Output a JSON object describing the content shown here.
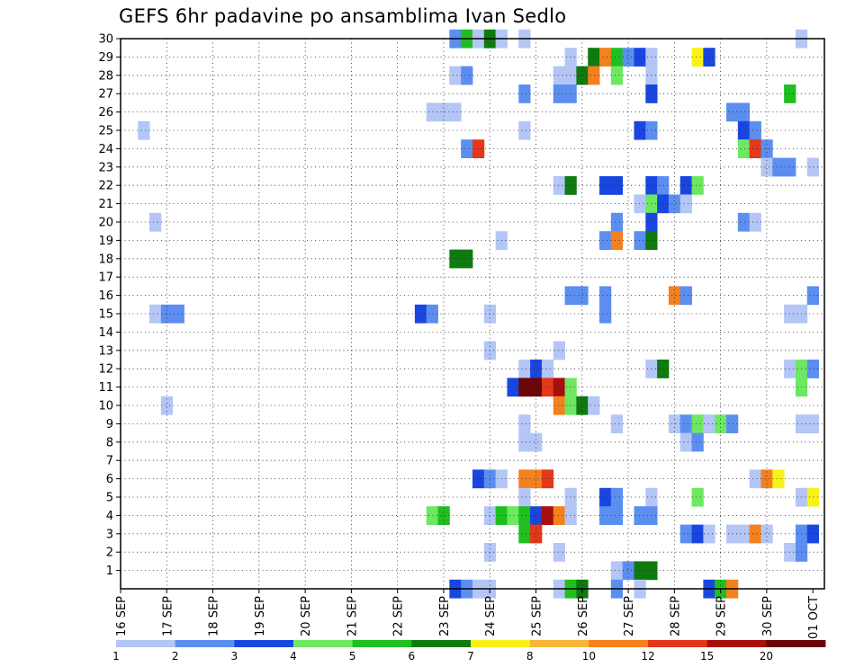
{
  "chart_data": {
    "type": "heatmap",
    "title": "GEFS 6hr padavine po ansamblima Ivan Sedlo",
    "x_axis": {
      "kind": "time",
      "start": "16 SEP 00Z",
      "end": "01 OCT 06Z",
      "step_hours": 6,
      "tick_labels": [
        "16 SEP",
        "17 SEP",
        "18 SEP",
        "19 SEP",
        "20 SEP",
        "21 SEP",
        "22 SEP",
        "23 SEP",
        "24 SEP",
        "25 SEP",
        "26 SEP",
        "27 SEP",
        "28 SEP",
        "29 SEP",
        "30 SEP",
        "01 OCT"
      ]
    },
    "y_axis": {
      "min": 0,
      "max": 30,
      "tick_labels": [
        "1",
        "2",
        "3",
        "4",
        "5",
        "6",
        "7",
        "8",
        "9",
        "10",
        "11",
        "12",
        "13",
        "14",
        "15",
        "16",
        "17",
        "18",
        "19",
        "20",
        "21",
        "22",
        "23",
        "24",
        "25",
        "26",
        "27",
        "28",
        "29",
        "30"
      ]
    },
    "grid": "dotted",
    "legend": {
      "placement": "bottom",
      "labels": [
        "1",
        "2",
        "3",
        "4",
        "5",
        "6",
        "7",
        "8",
        "10",
        "12",
        "15",
        "20"
      ],
      "colors": [
        "#b3c6f5",
        "#5c8ef0",
        "#1a46e0",
        "#6ee862",
        "#1fbf1f",
        "#0f7a0f",
        "#f8f21a",
        "#f7b63a",
        "#f4801e",
        "#e5371a",
        "#a81010",
        "#6a0606"
      ]
    },
    "cells": [
      {
        "x": "23 SEP 06Z",
        "y": 30,
        "v": 2
      },
      {
        "x": "23 SEP 12Z",
        "y": 30,
        "v": 5
      },
      {
        "x": "23 SEP 18Z",
        "y": 30,
        "v": 1
      },
      {
        "x": "24 SEP 00Z",
        "y": 30,
        "v": 6
      },
      {
        "x": "24 SEP 06Z",
        "y": 30,
        "v": 1
      },
      {
        "x": "24 SEP 18Z",
        "y": 30,
        "v": 1
      },
      {
        "x": "30 SEP 18Z",
        "y": 30,
        "v": 1
      },
      {
        "x": "25 SEP 18Z",
        "y": 29,
        "v": 1
      },
      {
        "x": "26 SEP 06Z",
        "y": 29,
        "v": 6
      },
      {
        "x": "26 SEP 12Z",
        "y": 29,
        "v": 10
      },
      {
        "x": "26 SEP 18Z",
        "y": 29,
        "v": 5
      },
      {
        "x": "27 SEP 00Z",
        "y": 29,
        "v": 2
      },
      {
        "x": "27 SEP 06Z",
        "y": 29,
        "v": 3
      },
      {
        "x": "27 SEP 12Z",
        "y": 29,
        "v": 1
      },
      {
        "x": "28 SEP 12Z",
        "y": 29,
        "v": 7
      },
      {
        "x": "28 SEP 18Z",
        "y": 29,
        "v": 3
      },
      {
        "x": "23 SEP 06Z",
        "y": 28,
        "v": 1
      },
      {
        "x": "23 SEP 12Z",
        "y": 28,
        "v": 2
      },
      {
        "x": "25 SEP 12Z",
        "y": 28,
        "v": 1
      },
      {
        "x": "25 SEP 18Z",
        "y": 28,
        "v": 1
      },
      {
        "x": "26 SEP 00Z",
        "y": 28,
        "v": 6
      },
      {
        "x": "26 SEP 06Z",
        "y": 28,
        "v": 10
      },
      {
        "x": "26 SEP 18Z",
        "y": 28,
        "v": 4
      },
      {
        "x": "27 SEP 12Z",
        "y": 28,
        "v": 1
      },
      {
        "x": "24 SEP 18Z",
        "y": 27,
        "v": 2
      },
      {
        "x": "25 SEP 12Z",
        "y": 27,
        "v": 2
      },
      {
        "x": "25 SEP 18Z",
        "y": 27,
        "v": 2
      },
      {
        "x": "27 SEP 12Z",
        "y": 27,
        "v": 3
      },
      {
        "x": "30 SEP 12Z",
        "y": 27,
        "v": 5
      },
      {
        "x": "22 SEP 18Z",
        "y": 26,
        "v": 1
      },
      {
        "x": "23 SEP 00Z",
        "y": 26,
        "v": 1
      },
      {
        "x": "23 SEP 06Z",
        "y": 26,
        "v": 1
      },
      {
        "x": "29 SEP 06Z",
        "y": 26,
        "v": 2
      },
      {
        "x": "29 SEP 12Z",
        "y": 26,
        "v": 2
      },
      {
        "x": "16 SEP 12Z",
        "y": 25,
        "v": 1
      },
      {
        "x": "24 SEP 18Z",
        "y": 25,
        "v": 1
      },
      {
        "x": "27 SEP 06Z",
        "y": 25,
        "v": 3
      },
      {
        "x": "27 SEP 12Z",
        "y": 25,
        "v": 2
      },
      {
        "x": "29 SEP 12Z",
        "y": 25,
        "v": 3
      },
      {
        "x": "29 SEP 18Z",
        "y": 25,
        "v": 2
      },
      {
        "x": "23 SEP 12Z",
        "y": 24,
        "v": 2
      },
      {
        "x": "23 SEP 18Z",
        "y": 24,
        "v": 12
      },
      {
        "x": "29 SEP 12Z",
        "y": 24,
        "v": 4
      },
      {
        "x": "29 SEP 18Z",
        "y": 24,
        "v": 12
      },
      {
        "x": "30 SEP 00Z",
        "y": 24,
        "v": 2
      },
      {
        "x": "30 SEP 00Z",
        "y": 23,
        "v": 1
      },
      {
        "x": "30 SEP 06Z",
        "y": 23,
        "v": 2
      },
      {
        "x": "30 SEP 12Z",
        "y": 23,
        "v": 2
      },
      {
        "x": "01 OCT 00Z",
        "y": 23,
        "v": 1
      },
      {
        "x": "25 SEP 12Z",
        "y": 22,
        "v": 1
      },
      {
        "x": "25 SEP 18Z",
        "y": 22,
        "v": 6
      },
      {
        "x": "26 SEP 12Z",
        "y": 22,
        "v": 3
      },
      {
        "x": "26 SEP 18Z",
        "y": 22,
        "v": 3
      },
      {
        "x": "27 SEP 12Z",
        "y": 22,
        "v": 3
      },
      {
        "x": "27 SEP 18Z",
        "y": 22,
        "v": 2
      },
      {
        "x": "28 SEP 06Z",
        "y": 22,
        "v": 3
      },
      {
        "x": "28 SEP 12Z",
        "y": 22,
        "v": 4
      },
      {
        "x": "27 SEP 06Z",
        "y": 21,
        "v": 1
      },
      {
        "x": "27 SEP 12Z",
        "y": 21,
        "v": 4
      },
      {
        "x": "27 SEP 18Z",
        "y": 21,
        "v": 3
      },
      {
        "x": "28 SEP 00Z",
        "y": 21,
        "v": 2
      },
      {
        "x": "28 SEP 06Z",
        "y": 21,
        "v": 1
      },
      {
        "x": "16 SEP 18Z",
        "y": 20,
        "v": 1
      },
      {
        "x": "26 SEP 18Z",
        "y": 20,
        "v": 2
      },
      {
        "x": "27 SEP 12Z",
        "y": 20,
        "v": 3
      },
      {
        "x": "29 SEP 12Z",
        "y": 20,
        "v": 2
      },
      {
        "x": "29 SEP 18Z",
        "y": 20,
        "v": 1
      },
      {
        "x": "24 SEP 06Z",
        "y": 19,
        "v": 1
      },
      {
        "x": "26 SEP 12Z",
        "y": 19,
        "v": 2
      },
      {
        "x": "26 SEP 18Z",
        "y": 19,
        "v": 10
      },
      {
        "x": "27 SEP 06Z",
        "y": 19,
        "v": 2
      },
      {
        "x": "27 SEP 12Z",
        "y": 19,
        "v": 6
      },
      {
        "x": "23 SEP 06Z",
        "y": 18,
        "v": 6
      },
      {
        "x": "23 SEP 12Z",
        "y": 18,
        "v": 6
      },
      {
        "x": "25 SEP 18Z",
        "y": 16,
        "v": 2
      },
      {
        "x": "26 SEP 00Z",
        "y": 16,
        "v": 2
      },
      {
        "x": "26 SEP 12Z",
        "y": 16,
        "v": 2
      },
      {
        "x": "28 SEP 00Z",
        "y": 16,
        "v": 10
      },
      {
        "x": "28 SEP 06Z",
        "y": 16,
        "v": 2
      },
      {
        "x": "01 OCT 00Z",
        "y": 16,
        "v": 2
      },
      {
        "x": "16 SEP 18Z",
        "y": 15,
        "v": 1
      },
      {
        "x": "17 SEP 00Z",
        "y": 15,
        "v": 2
      },
      {
        "x": "17 SEP 06Z",
        "y": 15,
        "v": 2
      },
      {
        "x": "22 SEP 12Z",
        "y": 15,
        "v": 3
      },
      {
        "x": "22 SEP 18Z",
        "y": 15,
        "v": 2
      },
      {
        "x": "24 SEP 00Z",
        "y": 15,
        "v": 1
      },
      {
        "x": "26 SEP 12Z",
        "y": 15,
        "v": 2
      },
      {
        "x": "30 SEP 12Z",
        "y": 15,
        "v": 1
      },
      {
        "x": "30 SEP 18Z",
        "y": 15,
        "v": 1
      },
      {
        "x": "24 SEP 00Z",
        "y": 13,
        "v": 1
      },
      {
        "x": "25 SEP 12Z",
        "y": 13,
        "v": 1
      },
      {
        "x": "24 SEP 18Z",
        "y": 12,
        "v": 1
      },
      {
        "x": "25 SEP 00Z",
        "y": 12,
        "v": 3
      },
      {
        "x": "25 SEP 06Z",
        "y": 12,
        "v": 1
      },
      {
        "x": "27 SEP 12Z",
        "y": 12,
        "v": 1
      },
      {
        "x": "27 SEP 18Z",
        "y": 12,
        "v": 6
      },
      {
        "x": "30 SEP 12Z",
        "y": 12,
        "v": 1
      },
      {
        "x": "30 SEP 18Z",
        "y": 12,
        "v": 4
      },
      {
        "x": "01 OCT 00Z",
        "y": 12,
        "v": 2
      },
      {
        "x": "24 SEP 12Z",
        "y": 11,
        "v": 3
      },
      {
        "x": "24 SEP 18Z",
        "y": 11,
        "v": 20
      },
      {
        "x": "25 SEP 00Z",
        "y": 11,
        "v": 20
      },
      {
        "x": "25 SEP 06Z",
        "y": 11,
        "v": 12
      },
      {
        "x": "25 SEP 12Z",
        "y": 11,
        "v": 15
      },
      {
        "x": "25 SEP 18Z",
        "y": 11,
        "v": 4
      },
      {
        "x": "30 SEP 18Z",
        "y": 11,
        "v": 4
      },
      {
        "x": "17 SEP 00Z",
        "y": 10,
        "v": 1
      },
      {
        "x": "25 SEP 12Z",
        "y": 10,
        "v": 10
      },
      {
        "x": "25 SEP 18Z",
        "y": 10,
        "v": 4
      },
      {
        "x": "26 SEP 00Z",
        "y": 10,
        "v": 6
      },
      {
        "x": "26 SEP 06Z",
        "y": 10,
        "v": 1
      },
      {
        "x": "24 SEP 18Z",
        "y": 9,
        "v": 1
      },
      {
        "x": "26 SEP 18Z",
        "y": 9,
        "v": 1
      },
      {
        "x": "28 SEP 00Z",
        "y": 9,
        "v": 1
      },
      {
        "x": "28 SEP 06Z",
        "y": 9,
        "v": 2
      },
      {
        "x": "28 SEP 12Z",
        "y": 9,
        "v": 4
      },
      {
        "x": "28 SEP 18Z",
        "y": 9,
        "v": 1
      },
      {
        "x": "29 SEP 00Z",
        "y": 9,
        "v": 4
      },
      {
        "x": "29 SEP 06Z",
        "y": 9,
        "v": 2
      },
      {
        "x": "30 SEP 18Z",
        "y": 9,
        "v": 1
      },
      {
        "x": "01 OCT 00Z",
        "y": 9,
        "v": 1
      },
      {
        "x": "24 SEP 18Z",
        "y": 8,
        "v": 1
      },
      {
        "x": "25 SEP 00Z",
        "y": 8,
        "v": 1
      },
      {
        "x": "28 SEP 06Z",
        "y": 8,
        "v": 1
      },
      {
        "x": "28 SEP 12Z",
        "y": 8,
        "v": 2
      },
      {
        "x": "23 SEP 18Z",
        "y": 6,
        "v": 3
      },
      {
        "x": "24 SEP 00Z",
        "y": 6,
        "v": 2
      },
      {
        "x": "24 SEP 06Z",
        "y": 6,
        "v": 1
      },
      {
        "x": "24 SEP 18Z",
        "y": 6,
        "v": 10
      },
      {
        "x": "25 SEP 00Z",
        "y": 6,
        "v": 10
      },
      {
        "x": "25 SEP 06Z",
        "y": 6,
        "v": 12
      },
      {
        "x": "29 SEP 18Z",
        "y": 6,
        "v": 1
      },
      {
        "x": "30 SEP 00Z",
        "y": 6,
        "v": 10
      },
      {
        "x": "30 SEP 06Z",
        "y": 6,
        "v": 7
      },
      {
        "x": "24 SEP 18Z",
        "y": 5,
        "v": 1
      },
      {
        "x": "25 SEP 18Z",
        "y": 5,
        "v": 1
      },
      {
        "x": "26 SEP 12Z",
        "y": 5,
        "v": 3
      },
      {
        "x": "26 SEP 18Z",
        "y": 5,
        "v": 2
      },
      {
        "x": "27 SEP 12Z",
        "y": 5,
        "v": 1
      },
      {
        "x": "28 SEP 12Z",
        "y": 5,
        "v": 4
      },
      {
        "x": "30 SEP 18Z",
        "y": 5,
        "v": 1
      },
      {
        "x": "01 OCT 00Z",
        "y": 5,
        "v": 7
      },
      {
        "x": "22 SEP 18Z",
        "y": 4,
        "v": 4
      },
      {
        "x": "23 SEP 00Z",
        "y": 4,
        "v": 5
      },
      {
        "x": "24 SEP 00Z",
        "y": 4,
        "v": 1
      },
      {
        "x": "24 SEP 06Z",
        "y": 4,
        "v": 5
      },
      {
        "x": "24 SEP 12Z",
        "y": 4,
        "v": 4
      },
      {
        "x": "24 SEP 18Z",
        "y": 4,
        "v": 5
      },
      {
        "x": "25 SEP 00Z",
        "y": 4,
        "v": 3
      },
      {
        "x": "25 SEP 06Z",
        "y": 4,
        "v": 15
      },
      {
        "x": "25 SEP 12Z",
        "y": 4,
        "v": 10
      },
      {
        "x": "25 SEP 18Z",
        "y": 4,
        "v": 1
      },
      {
        "x": "26 SEP 12Z",
        "y": 4,
        "v": 2
      },
      {
        "x": "26 SEP 18Z",
        "y": 4,
        "v": 2
      },
      {
        "x": "27 SEP 06Z",
        "y": 4,
        "v": 2
      },
      {
        "x": "27 SEP 12Z",
        "y": 4,
        "v": 2
      },
      {
        "x": "24 SEP 18Z",
        "y": 3,
        "v": 5
      },
      {
        "x": "25 SEP 00Z",
        "y": 3,
        "v": 12
      },
      {
        "x": "28 SEP 06Z",
        "y": 3,
        "v": 2
      },
      {
        "x": "28 SEP 12Z",
        "y": 3,
        "v": 3
      },
      {
        "x": "28 SEP 18Z",
        "y": 3,
        "v": 1
      },
      {
        "x": "29 SEP 06Z",
        "y": 3,
        "v": 1
      },
      {
        "x": "29 SEP 12Z",
        "y": 3,
        "v": 1
      },
      {
        "x": "29 SEP 18Z",
        "y": 3,
        "v": 10
      },
      {
        "x": "30 SEP 00Z",
        "y": 3,
        "v": 1
      },
      {
        "x": "30 SEP 18Z",
        "y": 3,
        "v": 2
      },
      {
        "x": "01 OCT 00Z",
        "y": 3,
        "v": 3
      },
      {
        "x": "24 SEP 00Z",
        "y": 2,
        "v": 1
      },
      {
        "x": "25 SEP 12Z",
        "y": 2,
        "v": 1
      },
      {
        "x": "30 SEP 12Z",
        "y": 2,
        "v": 1
      },
      {
        "x": "30 SEP 18Z",
        "y": 2,
        "v": 2
      },
      {
        "x": "26 SEP 18Z",
        "y": 1,
        "v": 1
      },
      {
        "x": "27 SEP 00Z",
        "y": 1,
        "v": 2
      },
      {
        "x": "27 SEP 06Z",
        "y": 1,
        "v": 6
      },
      {
        "x": "27 SEP 12Z",
        "y": 1,
        "v": 6
      },
      {
        "x": "23 SEP 06Z",
        "y": 0,
        "v": 3
      },
      {
        "x": "23 SEP 12Z",
        "y": 0,
        "v": 2
      },
      {
        "x": "23 SEP 18Z",
        "y": 0,
        "v": 1
      },
      {
        "x": "24 SEP 00Z",
        "y": 0,
        "v": 1
      },
      {
        "x": "25 SEP 12Z",
        "y": 0,
        "v": 1
      },
      {
        "x": "25 SEP 18Z",
        "y": 0,
        "v": 5
      },
      {
        "x": "26 SEP 00Z",
        "y": 0,
        "v": 6
      },
      {
        "x": "26 SEP 18Z",
        "y": 0,
        "v": 2
      },
      {
        "x": "27 SEP 06Z",
        "y": 0,
        "v": 1
      },
      {
        "x": "28 SEP 18Z",
        "y": 0,
        "v": 3
      },
      {
        "x": "29 SEP 00Z",
        "y": 0,
        "v": 5
      },
      {
        "x": "29 SEP 06Z",
        "y": 0,
        "v": 10
      }
    ]
  }
}
